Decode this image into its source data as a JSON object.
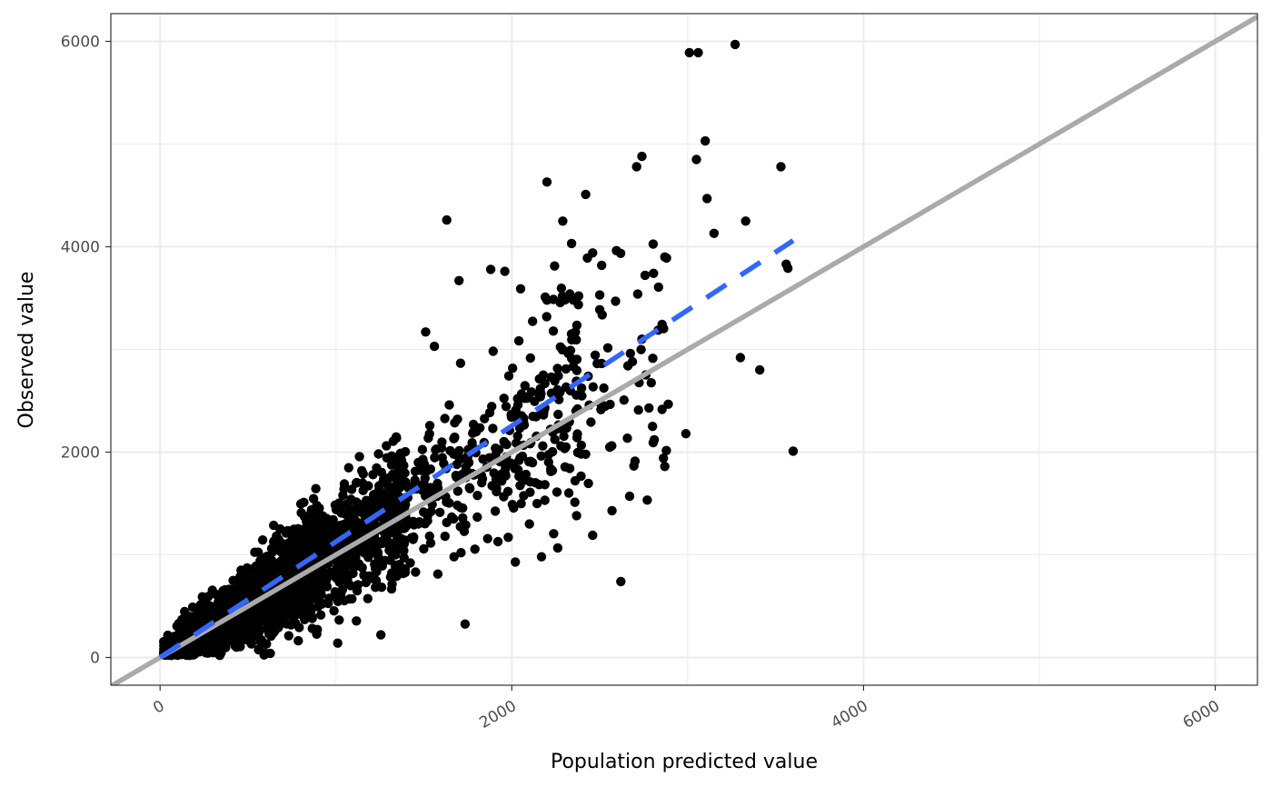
{
  "chart_data": {
    "type": "scatter",
    "title": "",
    "xlabel": "Population predicted value",
    "ylabel": "Observed value",
    "xlim": [
      -280,
      6240
    ],
    "ylim": [
      -270,
      6270
    ],
    "xticks": [
      0,
      2000,
      4000,
      6000
    ],
    "yticks": [
      0,
      2000,
      4000,
      6000
    ],
    "x_tick_labels": [
      "0",
      "2000",
      "4000",
      "6000"
    ],
    "y_tick_labels": [
      "0",
      "2000",
      "4000",
      "6000"
    ],
    "grid": true,
    "legend": "none",
    "colors": {
      "points": "#000000",
      "identity_line": "#aaaaaa",
      "fit_line": "#3366ff",
      "grid": "#ebebeb",
      "panel_border": "#333333"
    },
    "reference_line": {
      "type": "identity",
      "slope": 1,
      "intercept": 0
    },
    "fit_line": {
      "type": "linear",
      "style": "dashed",
      "x": [
        0,
        3600
      ],
      "y": [
        0,
        4060
      ]
    },
    "outlier_points": [
      [
        3270,
        5970
      ],
      [
        3010,
        5890
      ],
      [
        3060,
        5890
      ],
      [
        3100,
        5030
      ],
      [
        3050,
        4850
      ],
      [
        2740,
        4880
      ],
      [
        2710,
        4780
      ],
      [
        3530,
        4780
      ],
      [
        2200,
        4630
      ],
      [
        2420,
        4510
      ],
      [
        3110,
        4470
      ],
      [
        1630,
        4260
      ],
      [
        2290,
        4250
      ],
      [
        3330,
        4250
      ],
      [
        3150,
        4130
      ],
      [
        2460,
        3940
      ],
      [
        2430,
        3890
      ],
      [
        2870,
        3900
      ],
      [
        2880,
        3890
      ],
      [
        3560,
        3830
      ],
      [
        3570,
        3790
      ],
      [
        1880,
        3780
      ],
      [
        1960,
        3760
      ],
      [
        1700,
        3670
      ],
      [
        2050,
        3590
      ],
      [
        2190,
        3510
      ],
      [
        2330,
        3540
      ],
      [
        2380,
        3520
      ],
      [
        2500,
        3530
      ],
      [
        2590,
        3470
      ],
      [
        2200,
        3480
      ],
      [
        2350,
        3480
      ],
      [
        3300,
        2920
      ],
      [
        3410,
        2800
      ],
      [
        3600,
        2010
      ],
      [
        2620,
        740
      ],
      [
        2460,
        1190
      ],
      [
        2020,
        930
      ],
      [
        1980,
        1170
      ],
      [
        1010,
        140
      ],
      [
        1510,
        3170
      ],
      [
        1560,
        3030
      ],
      [
        2990,
        2180
      ],
      [
        2870,
        1860
      ],
      [
        2670,
        1570
      ],
      [
        2570,
        1430
      ],
      [
        2420,
        1980
      ],
      [
        2100,
        1300
      ],
      [
        2780,
        2430
      ],
      [
        2810,
        2120
      ],
      [
        2740,
        3100
      ],
      [
        2800,
        2250
      ],
      [
        2660,
        2840
      ],
      [
        2360,
        1720
      ],
      [
        1240,
        980
      ]
    ]
  }
}
